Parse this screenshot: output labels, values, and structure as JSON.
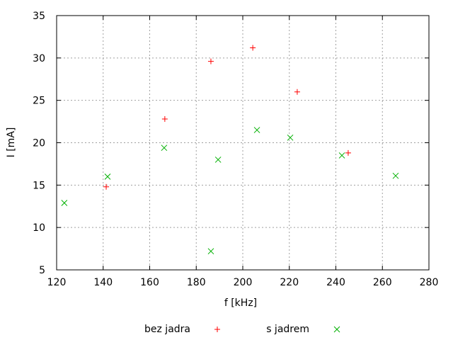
{
  "chart_data": {
    "type": "scatter",
    "xlabel": "f [kHz]",
    "ylabel": "I [mA]",
    "xlim": [
      120,
      280
    ],
    "ylim": [
      5,
      35
    ],
    "xticks": [
      120,
      140,
      160,
      180,
      200,
      220,
      240,
      260,
      280
    ],
    "yticks": [
      5,
      10,
      15,
      20,
      25,
      30,
      35
    ],
    "grid": true,
    "legend": "bottom",
    "series": [
      {
        "name": "bez jadra",
        "marker": "plus",
        "color": "#ff0000",
        "points": [
          [
            141.3,
            14.8
          ],
          [
            166.5,
            22.8
          ],
          [
            186.3,
            29.6
          ],
          [
            204.3,
            31.2
          ],
          [
            223.4,
            26.0
          ],
          [
            245.3,
            18.8
          ]
        ]
      },
      {
        "name": "s jadrem",
        "marker": "cross",
        "color": "#00b000",
        "points": [
          [
            123.3,
            12.9
          ],
          [
            141.9,
            16.0
          ],
          [
            166.2,
            19.4
          ],
          [
            186.3,
            7.2
          ],
          [
            189.4,
            18.0
          ],
          [
            206.1,
            21.5
          ],
          [
            220.4,
            20.6
          ],
          [
            242.6,
            18.5
          ],
          [
            265.7,
            16.1
          ]
        ]
      }
    ]
  }
}
